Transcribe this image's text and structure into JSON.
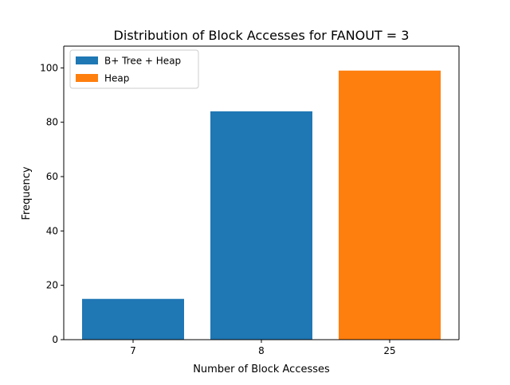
{
  "chart_data": {
    "type": "bar",
    "title": "Distribution of Block Accesses for FANOUT = 3",
    "xlabel": "Number of Block Accesses",
    "ylabel": "Frequency",
    "categories": [
      "7",
      "8",
      "25"
    ],
    "series": [
      {
        "name": "B+ Tree + Heap",
        "color": "#1f77b4",
        "values": [
          15,
          84,
          null
        ]
      },
      {
        "name": "Heap",
        "color": "#ff7f0e",
        "values": [
          null,
          null,
          99
        ]
      }
    ],
    "ylim": [
      0,
      108
    ],
    "yticks": [
      0,
      20,
      40,
      60,
      80,
      100
    ],
    "grid": false,
    "legend_position": "top-left"
  }
}
